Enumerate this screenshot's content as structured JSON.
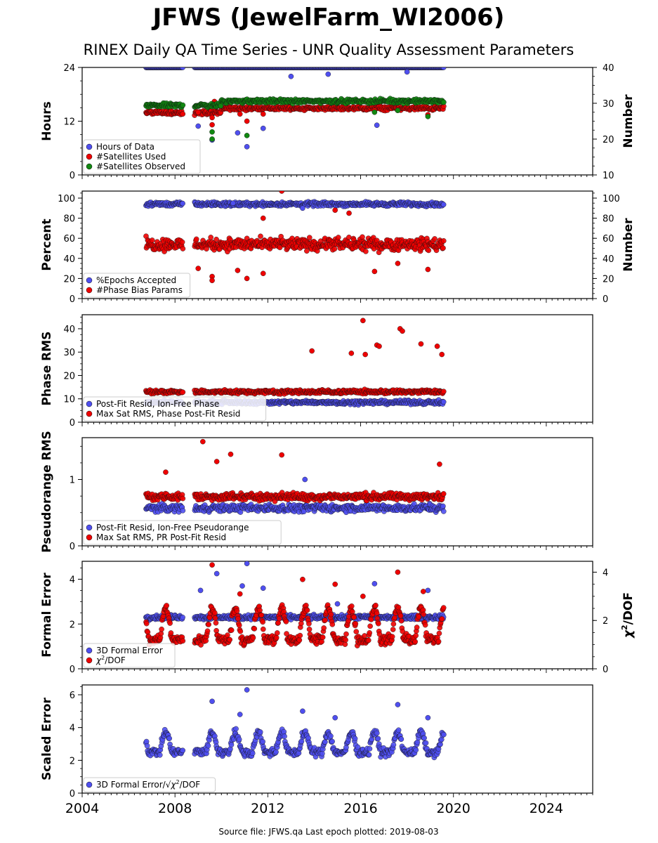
{
  "title": "JFWS (JewelFarm_WI2006)",
  "subtitle": "RINEX Daily QA Time Series - UNR Quality Assessment Parameters",
  "source_text": "Source file: JFWS.qa Last epoch plotted: 2019-08-03",
  "colors": {
    "blue": "#4f4fef",
    "red": "#ee0000",
    "green": "#118811"
  },
  "chart_data": [
    {
      "type": "scatter",
      "xlim": [
        2004,
        2026
      ],
      "x_ticks": [
        "2004",
        "2008",
        "2012",
        "2016",
        "2020",
        "2024"
      ],
      "ylabel": "Hours",
      "ylim": [
        0,
        24
      ],
      "y_ticks": [
        "0",
        "12",
        "24"
      ],
      "ylabel_right": "Number",
      "ylim_right": [
        10,
        40
      ],
      "y_ticks_right": [
        "10",
        "20",
        "30",
        "40"
      ],
      "legend": "lower-left",
      "series": [
        {
          "name": "Hours of Data",
          "axis": "left",
          "color": "#4f4fef",
          "typical": 24,
          "outliers": [
            [
              2009.6,
              7.8
            ],
            [
              2010.7,
              9.4
            ],
            [
              2011.1,
              6.3
            ],
            [
              2011.8,
              10.4
            ],
            [
              2009.0,
              10.9
            ],
            [
              2013.0,
              22
            ],
            [
              2016.7,
              11.1
            ],
            [
              2014.6,
              22.5
            ],
            [
              2018.0,
              23
            ]
          ]
        },
        {
          "name": "#Satellites Used",
          "axis": "right",
          "color": "#ee0000",
          "typical": 29,
          "outliers": [
            [
              2009.0,
              27.5
            ],
            [
              2009.6,
              24
            ],
            [
              2009.6,
              26
            ],
            [
              2010.8,
              27
            ],
            [
              2011.1,
              25
            ],
            [
              2011.8,
              27
            ],
            [
              2016.6,
              28
            ],
            [
              2018.9,
              26.8
            ],
            [
              2009.7,
              30.5
            ]
          ]
        },
        {
          "name": "#Satellites Observed",
          "axis": "right",
          "color": "#118811",
          "typical": 30,
          "outliers": [
            [
              2009.6,
              22
            ],
            [
              2009.6,
              20
            ],
            [
              2011.1,
              21
            ],
            [
              2016.6,
              27.5
            ],
            [
              2017.6,
              28
            ],
            [
              2018.9,
              26.3
            ]
          ]
        }
      ]
    },
    {
      "type": "scatter",
      "xlim": [
        2004,
        2026
      ],
      "ylabel": "Percent",
      "ylim": [
        0,
        107
      ],
      "y_ticks": [
        "0",
        "20",
        "40",
        "60",
        "80",
        "100"
      ],
      "ylabel_right": "Number",
      "ylim_right": [
        0,
        107
      ],
      "y_ticks_right": [
        "0",
        "20",
        "40",
        "60",
        "80",
        "100"
      ],
      "legend": "lower-left",
      "series": [
        {
          "name": "%Epochs Accepted",
          "axis": "left",
          "color": "#4f4fef",
          "typical": 94,
          "outliers": [
            [
              2010.5,
              95
            ],
            [
              2013.5,
              90
            ]
          ]
        },
        {
          "name": "#Phase Bias Params",
          "axis": "right",
          "color": "#ee0000",
          "typical": 54,
          "outliers": [
            [
              2009.0,
              30
            ],
            [
              2009.6,
              22
            ],
            [
              2009.6,
              18
            ],
            [
              2010.7,
              28
            ],
            [
              2011.1,
              20
            ],
            [
              2011.8,
              25
            ],
            [
              2016.6,
              27
            ],
            [
              2017.6,
              35
            ],
            [
              2018.9,
              29
            ],
            [
              2012.6,
              107
            ],
            [
              2011.8,
              80
            ],
            [
              2014.9,
              88
            ],
            [
              2015.5,
              85
            ]
          ]
        }
      ]
    },
    {
      "type": "scatter",
      "xlim": [
        2004,
        2026
      ],
      "ylabel": "Phase RMS",
      "ylim": [
        0,
        46
      ],
      "y_ticks": [
        "0",
        "10",
        "20",
        "30",
        "40"
      ],
      "legend": "lower-left",
      "series": [
        {
          "name": "Post-Fit Resid, Ion-Free Phase",
          "axis": "left",
          "color": "#4f4fef",
          "typical": 8.5,
          "outliers": []
        },
        {
          "name": "Max Sat RMS, Phase Post-Fit Resid",
          "axis": "left",
          "color": "#ee0000",
          "typical": 13,
          "outliers": [
            [
              2016.1,
              43.5
            ],
            [
              2016.7,
              33
            ],
            [
              2016.8,
              32.5
            ],
            [
              2017.7,
              40
            ],
            [
              2017.8,
              39
            ],
            [
              2018.6,
              33.5
            ],
            [
              2019.3,
              32.5
            ],
            [
              2019.5,
              29
            ],
            [
              2013.9,
              30.5
            ],
            [
              2015.6,
              29.5
            ],
            [
              2016.2,
              29
            ]
          ]
        }
      ]
    },
    {
      "type": "scatter",
      "xlim": [
        2004,
        2026
      ],
      "ylabel": "Pseudorange RMS",
      "ylim": [
        0,
        1.63
      ],
      "y_ticks": [
        "0",
        "1"
      ],
      "legend": "lower-left",
      "series": [
        {
          "name": "Post-Fit Resid, Ion-Free Pseudorange",
          "axis": "left",
          "color": "#4f4fef",
          "typical": 0.57,
          "outliers": [
            [
              2013.6,
              1.0
            ]
          ]
        },
        {
          "name": "Max Sat RMS, PR Post-Fit Resid",
          "axis": "left",
          "color": "#ee0000",
          "typical": 0.74,
          "outliers": [
            [
              2009.2,
              1.57
            ],
            [
              2009.8,
              1.27
            ],
            [
              2010.4,
              1.38
            ],
            [
              2012.6,
              1.37
            ],
            [
              2007.6,
              1.11
            ],
            [
              2019.4,
              1.23
            ]
          ]
        }
      ]
    },
    {
      "type": "scatter",
      "xlim": [
        2004,
        2026
      ],
      "ylabel": "Formal Error",
      "ylim": [
        0,
        4.8
      ],
      "y_ticks": [
        "0",
        "2",
        "4"
      ],
      "ylabel_right": "χ²/DOF",
      "ylim_right": [
        0,
        4.45
      ],
      "y_ticks_right": [
        "0",
        "2",
        "4"
      ],
      "legend": "lower-left",
      "series": [
        {
          "name": "3D Formal Error",
          "axis": "left",
          "color": "#4f4fef",
          "typical": 2.3,
          "outliers": [
            [
              2009.1,
              3.5
            ],
            [
              2009.8,
              4.25
            ],
            [
              2011.1,
              4.7
            ],
            [
              2010.9,
              3.7
            ],
            [
              2011.8,
              3.6
            ],
            [
              2016.6,
              3.8
            ],
            [
              2018.9,
              3.5
            ],
            [
              2015.0,
              2.9
            ]
          ]
        },
        {
          "name": "χ2/DOF",
          "axis": "right",
          "color": "#ee0000",
          "typical": 1.2,
          "outliers": [
            [
              2009.6,
              4.3
            ],
            [
              2013.5,
              3.7
            ],
            [
              2014.9,
              3.5
            ],
            [
              2017.6,
              4.0
            ],
            [
              2010.8,
              3.1
            ],
            [
              2016.1,
              3.0
            ],
            [
              2018.7,
              3.2
            ]
          ]
        }
      ]
    },
    {
      "type": "scatter",
      "xlim": [
        2004,
        2026
      ],
      "ylabel": "Scaled Error",
      "ylim": [
        0,
        6.6
      ],
      "y_ticks": [
        "0",
        "2",
        "4",
        "6"
      ],
      "legend": "lower-left",
      "series": [
        {
          "name": "3D Formal Error/√χ2/DOF",
          "axis": "left",
          "color": "#4f4fef",
          "typical": 2.5,
          "outliers": [
            [
              2009.6,
              5.6
            ],
            [
              2011.1,
              6.3
            ],
            [
              2013.5,
              5.0
            ],
            [
              2017.6,
              5.4
            ],
            [
              2010.8,
              4.8
            ],
            [
              2014.9,
              4.6
            ],
            [
              2018.9,
              4.6
            ]
          ]
        }
      ]
    }
  ]
}
